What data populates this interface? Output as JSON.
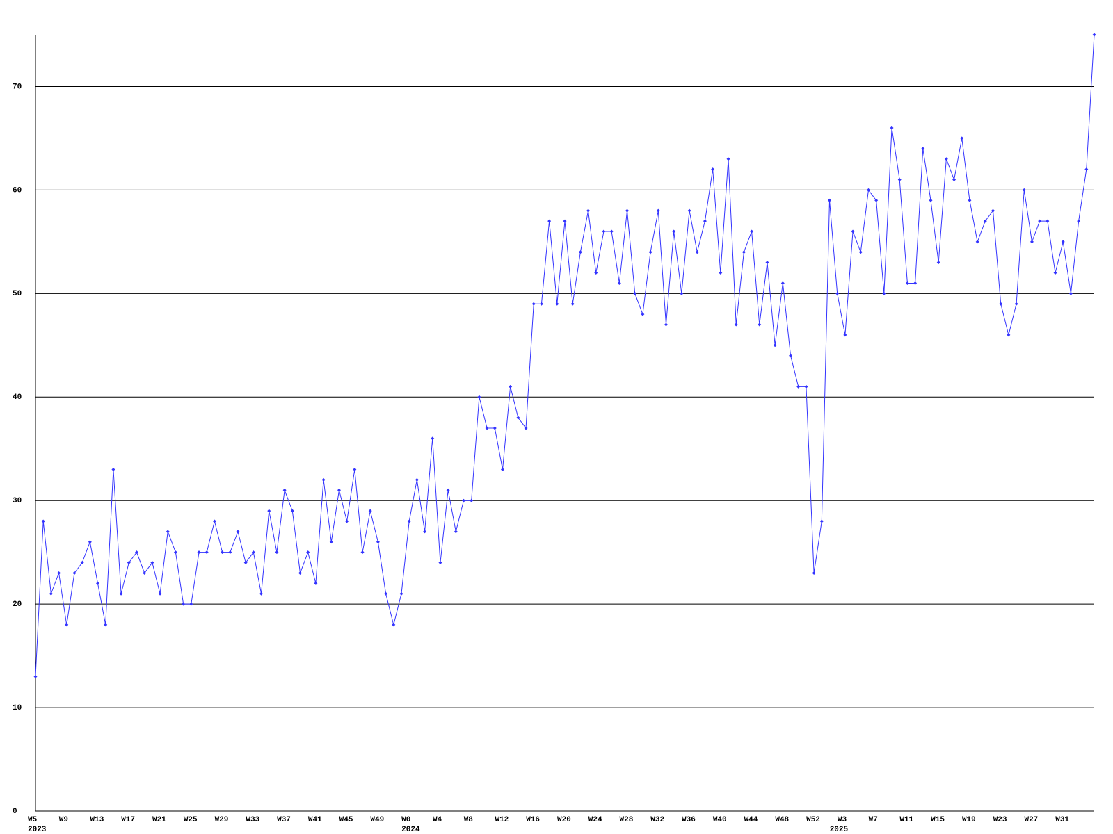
{
  "chart_data": {
    "type": "line",
    "categories": [
      "W5",
      null,
      null,
      null,
      "W9",
      null,
      null,
      null,
      "W13",
      null,
      null,
      null,
      "W17",
      null,
      null,
      null,
      "W21",
      null,
      null,
      null,
      "W25",
      null,
      null,
      null,
      "W29",
      null,
      null,
      null,
      "W33",
      null,
      null,
      null,
      "W37",
      null,
      null,
      null,
      "W41",
      null,
      null,
      null,
      "W45",
      null,
      null,
      null,
      "W49",
      null,
      null,
      null,
      "W0",
      null,
      null,
      null,
      "W4",
      null,
      null,
      null,
      "W8",
      null,
      null,
      null,
      "W12",
      null,
      null,
      null,
      "W16",
      null,
      null,
      null,
      "W20",
      null,
      null,
      null,
      "W24",
      null,
      null,
      null,
      "W28",
      null,
      null,
      null,
      "W32",
      null,
      null,
      null,
      "W36",
      null,
      null,
      null,
      "W40",
      null,
      null,
      null,
      "W44",
      null,
      null,
      null,
      "W48",
      null,
      null,
      null,
      "W52",
      null,
      null,
      null,
      "W3",
      null,
      null,
      null,
      "W7",
      null,
      null,
      null,
      "W11",
      null,
      null,
      null,
      "W15",
      null,
      null,
      null,
      "W19",
      null,
      null,
      null,
      "W23",
      null,
      null,
      null,
      "W27",
      null,
      null,
      null,
      "W31",
      null,
      null,
      null,
      null
    ],
    "years": [
      "2023",
      null,
      null,
      null,
      null,
      null,
      null,
      null,
      null,
      null,
      null,
      null,
      null,
      null,
      null,
      null,
      null,
      null,
      null,
      null,
      null,
      null,
      null,
      null,
      null,
      null,
      null,
      null,
      null,
      null,
      null,
      null,
      null,
      null,
      null,
      null,
      null,
      null,
      null,
      null,
      null,
      null,
      null,
      null,
      null,
      null,
      null,
      null,
      "2024",
      null,
      null,
      null,
      null,
      null,
      null,
      null,
      null,
      null,
      null,
      null,
      null,
      null,
      null,
      null,
      null,
      null,
      null,
      null,
      null,
      null,
      null,
      null,
      null,
      null,
      null,
      null,
      null,
      null,
      null,
      null,
      null,
      null,
      null,
      null,
      null,
      null,
      null,
      null,
      null,
      null,
      null,
      null,
      null,
      null,
      null,
      null,
      null,
      null,
      null,
      null,
      null,
      null,
      null,
      "2025",
      null,
      null,
      null,
      null,
      null,
      null,
      null,
      null,
      null,
      null,
      null,
      null,
      null,
      null,
      null,
      null,
      null,
      null,
      null,
      null,
      null,
      null,
      null,
      null,
      null,
      null,
      null,
      null,
      null,
      null,
      null,
      null,
      null,
      null
    ],
    "values": [
      13,
      28,
      21,
      23,
      18,
      23,
      24,
      26,
      22,
      18,
      33,
      21,
      24,
      25,
      23,
      24,
      21,
      27,
      25,
      20,
      20,
      25,
      25,
      28,
      25,
      25,
      27,
      24,
      25,
      21,
      29,
      25,
      31,
      29,
      23,
      25,
      22,
      32,
      26,
      31,
      28,
      33,
      25,
      29,
      26,
      21,
      18,
      21,
      28,
      32,
      27,
      36,
      24,
      31,
      27,
      30,
      30,
      40,
      37,
      37,
      33,
      41,
      38,
      37,
      49,
      49,
      57,
      49,
      57,
      49,
      54,
      58,
      52,
      56,
      56,
      51,
      58,
      50,
      48,
      54,
      58,
      47,
      56,
      50,
      58,
      54,
      57,
      62,
      52,
      63,
      47,
      54,
      56,
      47,
      53,
      45,
      51,
      44,
      41,
      41,
      23,
      28,
      59,
      50,
      46,
      56,
      54,
      60,
      59,
      50,
      66,
      61,
      51,
      51,
      64,
      59,
      53,
      63,
      61,
      65,
      59,
      55,
      57,
      58,
      49,
      46,
      49,
      60,
      55,
      57,
      57,
      52,
      55,
      50,
      57,
      62,
      75
    ],
    "color": "#3333ff",
    "ylim": [
      0,
      75
    ],
    "yticks": [
      0,
      10,
      20,
      30,
      40,
      50,
      60,
      70
    ],
    "grid": true
  }
}
